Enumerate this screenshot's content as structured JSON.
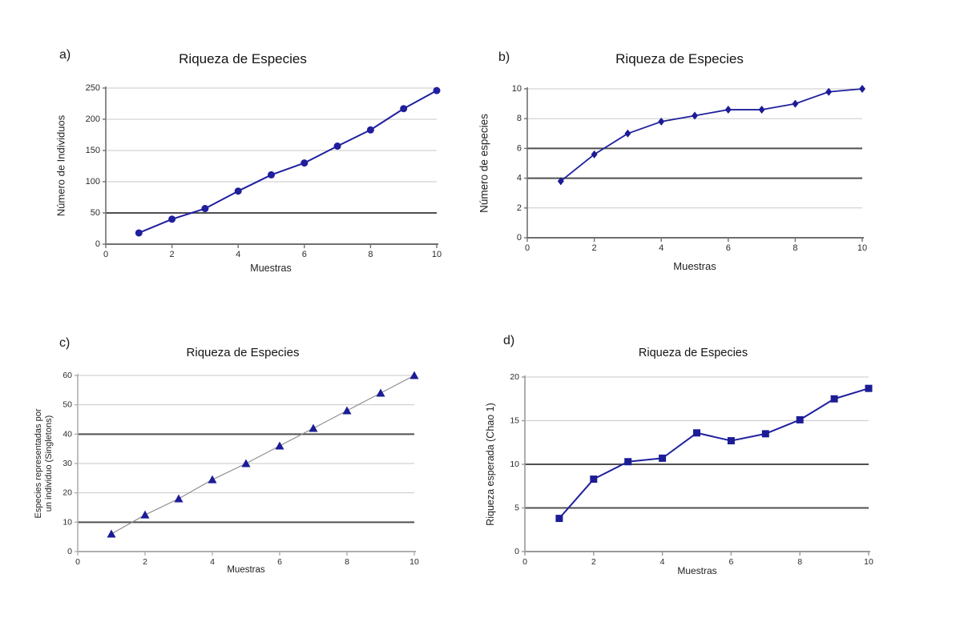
{
  "figure": {
    "background_color": "#ffffff",
    "panel_labels": [
      "a)",
      "b)",
      "c)",
      "d)"
    ]
  },
  "chart_data": [
    {
      "panel": "a)",
      "type": "line",
      "title": "Riqueza de Especies",
      "xlabel": "Muestras",
      "ylabel": "Número de Individuos",
      "x": [
        1,
        2,
        3,
        4,
        5,
        6,
        7,
        8,
        9,
        10
      ],
      "values": [
        18,
        40,
        57,
        85,
        111,
        130,
        157,
        183,
        217,
        246
      ],
      "xlim": [
        0,
        10
      ],
      "ylim": [
        0,
        250
      ],
      "xticks": [
        0,
        2,
        4,
        6,
        8,
        10
      ],
      "yticks": [
        0,
        50,
        100,
        150,
        200,
        250
      ],
      "dark_gridlines": [
        50
      ],
      "grid": true,
      "legend": "none",
      "marker": "circle",
      "line_color": "#1f1f9e",
      "marker_color": "#1f1f9e",
      "line_width": 2,
      "axis_color": "#707070"
    },
    {
      "panel": "b)",
      "type": "line",
      "title": "Riqueza de Especies",
      "xlabel": "Muestras",
      "ylabel": "Número de especies",
      "x": [
        1,
        2,
        3,
        4,
        5,
        6,
        7,
        8,
        9,
        10
      ],
      "values": [
        3.8,
        5.6,
        7.0,
        7.8,
        8.2,
        8.6,
        8.6,
        9.0,
        9.8,
        10.0
      ],
      "xlim": [
        0,
        10
      ],
      "ylim": [
        0,
        10
      ],
      "xticks": [
        0,
        2,
        4,
        6,
        8,
        10
      ],
      "yticks": [
        0,
        2,
        4,
        6,
        8,
        10
      ],
      "dark_gridlines": [
        4,
        6
      ],
      "grid": true,
      "legend": "none",
      "marker": "diamond",
      "line_color": "#1f1f9e",
      "marker_color": "#1c1c96",
      "line_width": 1.8,
      "axis_color": "#707070"
    },
    {
      "panel": "c)",
      "type": "line",
      "title": "Riqueza de Especies",
      "xlabel": "Muestras",
      "ylabel": "Especies representadas por\nun individuo (Singletons)",
      "x": [
        1,
        2,
        3,
        4,
        5,
        6,
        7,
        8,
        9,
        10
      ],
      "values": [
        6,
        12.5,
        18,
        24.5,
        30,
        36,
        42,
        48,
        54,
        60
      ],
      "xlim": [
        0,
        10
      ],
      "ylim": [
        0,
        60
      ],
      "xticks": [
        0,
        2,
        4,
        6,
        8,
        10
      ],
      "yticks": [
        0,
        10,
        20,
        30,
        40,
        50,
        60
      ],
      "dark_gridlines": [
        10,
        40
      ],
      "grid": true,
      "legend": "none",
      "marker": "triangle",
      "line_color": "#8f8f8f",
      "marker_color": "#1c1c96",
      "line_width": 1.2,
      "axis_color": "#b0b0b0"
    },
    {
      "panel": "d)",
      "type": "line",
      "title": "Riqueza de Especies",
      "xlabel": "Muestras",
      "ylabel": "Riqueza esperada (Chao 1)",
      "x": [
        1,
        2,
        3,
        4,
        5,
        6,
        7,
        8,
        9,
        10
      ],
      "values": [
        3.8,
        8.3,
        10.3,
        10.7,
        13.6,
        12.7,
        13.5,
        15.1,
        17.5,
        18.7
      ],
      "xlim": [
        0,
        10
      ],
      "ylim": [
        0,
        20
      ],
      "xticks": [
        0,
        2,
        4,
        6,
        8,
        10
      ],
      "yticks": [
        0,
        5,
        10,
        15,
        20
      ],
      "dark_gridlines": [
        5,
        10
      ],
      "grid": true,
      "legend": "none",
      "marker": "square",
      "line_color": "#1f1f9e",
      "marker_color": "#1c1c96",
      "line_width": 2,
      "axis_color": "#9a9a9a"
    }
  ]
}
